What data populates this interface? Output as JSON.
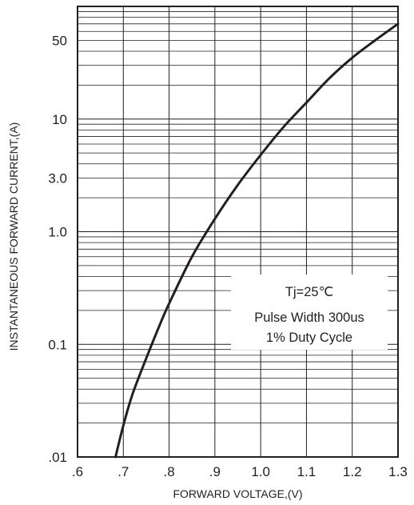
{
  "chart_data": {
    "type": "line",
    "xlabel": "FORWARD VOLTAGE,(V)",
    "ylabel": "INSTANTANEOUS FORWARD CURRENT,(A)",
    "x_scale": "linear",
    "y_scale": "log",
    "xlim": [
      0.6,
      1.3
    ],
    "ylim": [
      0.01,
      100
    ],
    "x_ticks": [
      {
        "value": 0.6,
        "label": ".6"
      },
      {
        "value": 0.7,
        "label": ".7"
      },
      {
        "value": 0.8,
        "label": ".8"
      },
      {
        "value": 0.9,
        "label": ".9"
      },
      {
        "value": 1.0,
        "label": "1.0"
      },
      {
        "value": 1.1,
        "label": "1.1"
      },
      {
        "value": 1.2,
        "label": "1.2"
      },
      {
        "value": 1.3,
        "label": "1.3"
      }
    ],
    "y_ticks": [
      {
        "value": 0.01,
        "label": ".01"
      },
      {
        "value": 0.1,
        "label": "0.1"
      },
      {
        "value": 1.0,
        "label": "1.0"
      },
      {
        "value": 3.0,
        "label": "3.0"
      },
      {
        "value": 10,
        "label": "10"
      },
      {
        "value": 50,
        "label": "50"
      }
    ],
    "grid": true,
    "annotation": {
      "lines": [
        "Tj=25℃",
        "Pulse Width 300us",
        "1% Duty Cycle"
      ],
      "position": "right-middle"
    },
    "series": [
      {
        "x": [
          0.683,
          0.7,
          0.72,
          0.75,
          0.78,
          0.8,
          0.85,
          0.9,
          0.95,
          1.0,
          1.05,
          1.1,
          1.15,
          1.2,
          1.25,
          1.3
        ],
        "y": [
          0.01,
          0.019,
          0.036,
          0.075,
          0.15,
          0.23,
          0.6,
          1.3,
          2.6,
          4.8,
          8.5,
          14,
          23,
          35,
          50,
          70
        ]
      }
    ]
  }
}
